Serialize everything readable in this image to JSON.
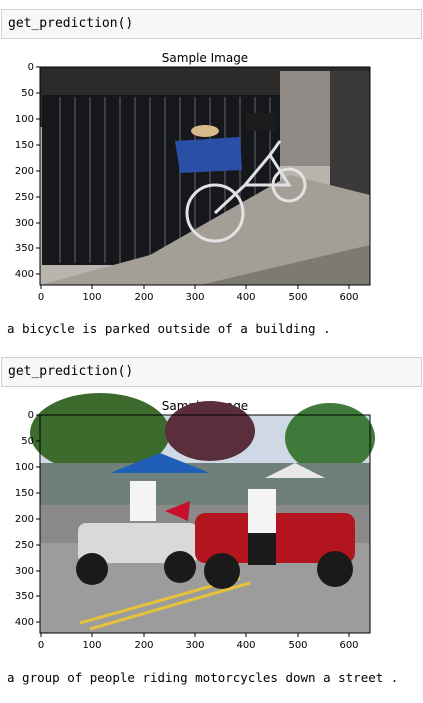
{
  "cells": [
    {
      "code": "get_prediction()",
      "plot_title": "Sample Image",
      "x_ticks": [
        "0",
        "100",
        "200",
        "300",
        "400",
        "500",
        "600"
      ],
      "y_ticks": [
        "0",
        "50",
        "100",
        "150",
        "200",
        "250",
        "300",
        "350",
        "400"
      ],
      "caption": "a bicycle is parked outside of a building ."
    },
    {
      "code": "get_prediction()",
      "plot_title": "Sample Image",
      "x_ticks": [
        "0",
        "100",
        "200",
        "300",
        "400",
        "500",
        "600"
      ],
      "y_ticks": [
        "0",
        "50",
        "100",
        "150",
        "200",
        "250",
        "300",
        "350",
        "400"
      ],
      "caption": "a group of people riding motorcycles down a street ."
    }
  ]
}
